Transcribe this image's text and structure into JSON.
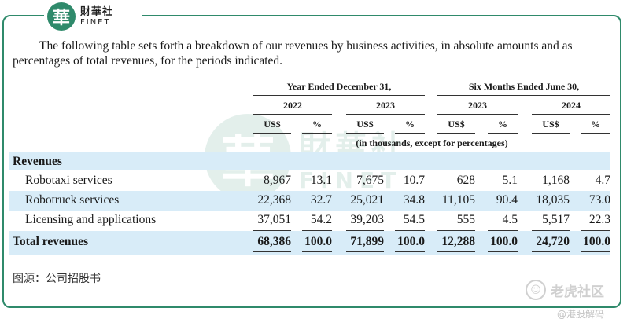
{
  "logo": {
    "mark": "華",
    "cn": "財華社",
    "en": "FINET"
  },
  "intro": "The following table sets forth a breakdown of our revenues by business activities, in absolute amounts and as percentages of total revenues, for the periods indicated.",
  "watermark": {
    "mark": "華",
    "cn": "財華社",
    "en": "FINET"
  },
  "table": {
    "group_headers": [
      "Year Ended December 31,",
      "Six Months Ended June 30,"
    ],
    "years": [
      "2022",
      "2023",
      "2023",
      "2024"
    ],
    "unit_headers": [
      "US$",
      "%",
      "US$",
      "%",
      "US$",
      "%",
      "US$",
      "%"
    ],
    "unit_note": "(in thousands, except for percentages)",
    "section_label": "Revenues",
    "rows": [
      {
        "label": "Robotaxi services",
        "values": [
          "8,967",
          "13.1",
          "7,675",
          "10.7",
          "628",
          "5.1",
          "1,168",
          "4.7"
        ]
      },
      {
        "label": "Robotruck services",
        "values": [
          "22,368",
          "32.7",
          "25,021",
          "34.8",
          "11,105",
          "90.4",
          "18,035",
          "73.0"
        ]
      },
      {
        "label": "Licensing and applications",
        "values": [
          "37,051",
          "54.2",
          "39,203",
          "54.5",
          "555",
          "4.5",
          "5,517",
          "22.3"
        ]
      }
    ],
    "total": {
      "label": "Total revenues",
      "values": [
        "68,386",
        "100.0",
        "71,899",
        "100.0",
        "12,288",
        "100.0",
        "24,720",
        "100.0"
      ]
    }
  },
  "source": "图源：公司招股书",
  "tiger": {
    "icon": "tiger-icon",
    "text": "老虎社区",
    "sub": "@港股解码"
  },
  "colors": {
    "accent": "#2f8a6b",
    "band": "#d8ecf8"
  }
}
